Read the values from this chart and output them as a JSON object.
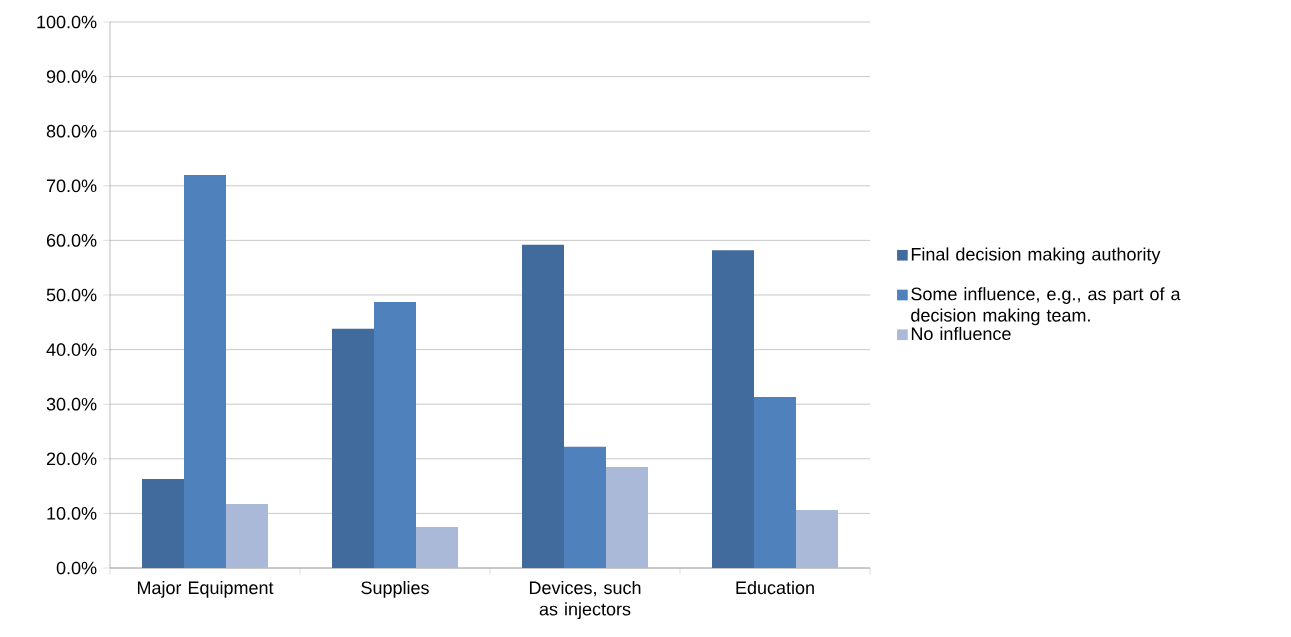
{
  "chart_data": {
    "type": "bar",
    "categories": [
      "Major Equipment",
      "Supplies",
      "Devices, such as injectors",
      "Education"
    ],
    "series": [
      {
        "name": "Final decision making authority",
        "color": "#416a9d",
        "values": [
          16.3,
          43.8,
          59.2,
          58.2
        ]
      },
      {
        "name": "Some influence, e.g., as part of a decision making team.",
        "color": "#4f81bd",
        "values": [
          72.0,
          48.7,
          22.2,
          31.3
        ]
      },
      {
        "name": "No influence",
        "color": "#aab9d7",
        "values": [
          11.7,
          7.5,
          18.5,
          10.6
        ]
      }
    ],
    "ylim": [
      0,
      100
    ],
    "yticks": [
      {
        "value": 0,
        "label": "0.0%"
      },
      {
        "value": 10,
        "label": "10.0%"
      },
      {
        "value": 20,
        "label": "20.0%"
      },
      {
        "value": 30,
        "label": "30.0%"
      },
      {
        "value": 40,
        "label": "40.0%"
      },
      {
        "value": 50,
        "label": "50.0%"
      },
      {
        "value": 60,
        "label": "60.0%"
      },
      {
        "value": 70,
        "label": "70.0%"
      },
      {
        "value": 80,
        "label": "80.0%"
      },
      {
        "value": 90,
        "label": "90.0%"
      },
      {
        "value": 100,
        "label": "100.0%"
      }
    ],
    "grid": "y",
    "legend": "right"
  }
}
